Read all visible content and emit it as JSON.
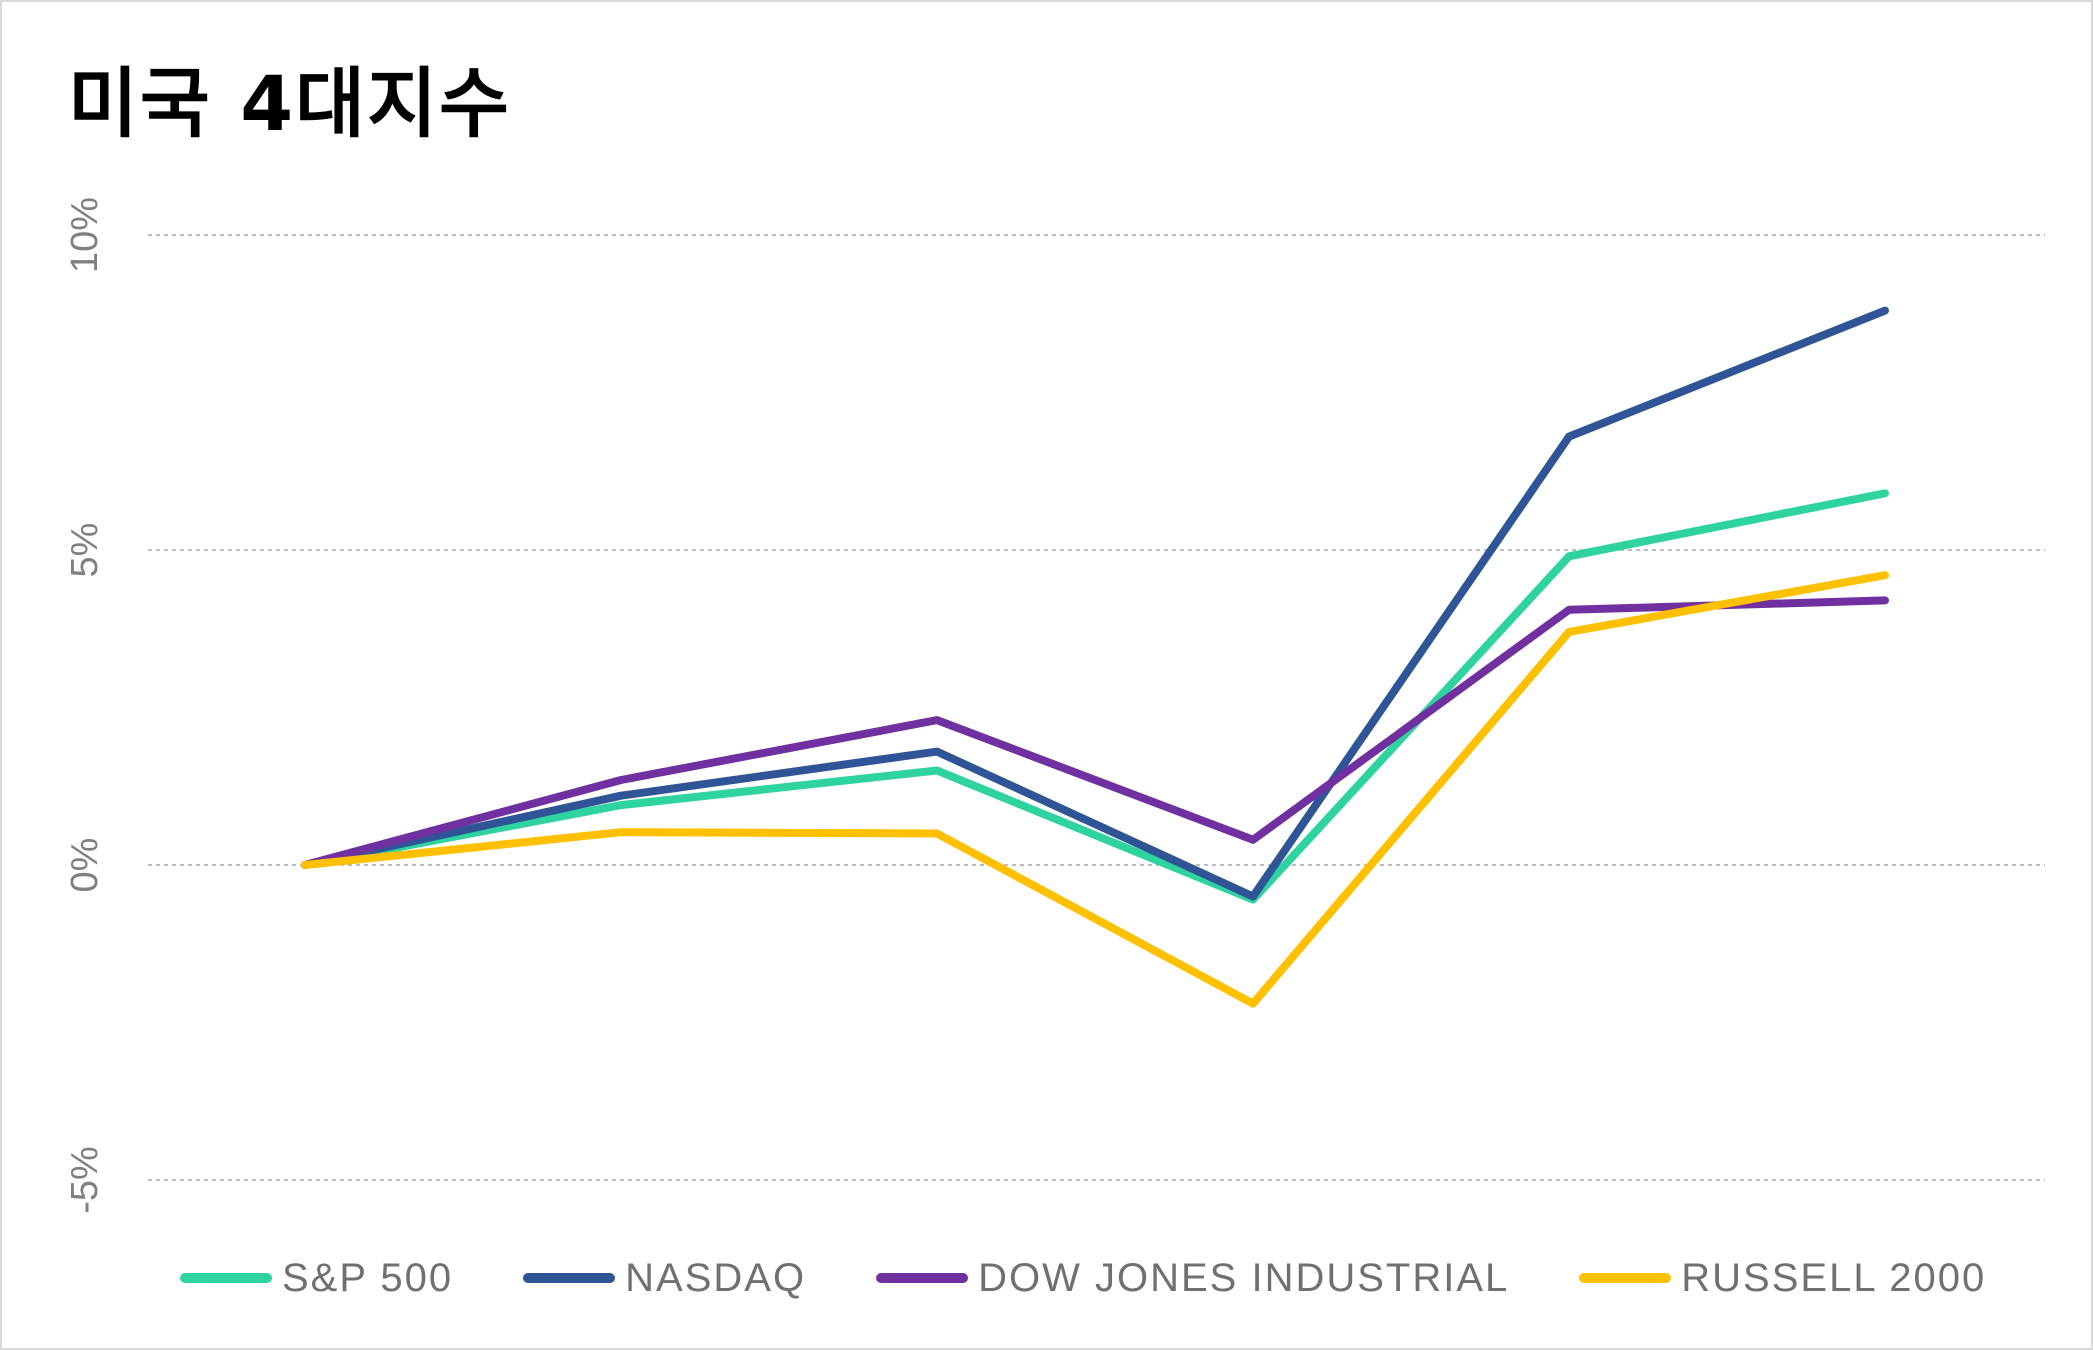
{
  "title": "미국 4대지수",
  "chart_data": {
    "type": "line",
    "title": "미국 4대지수",
    "x": [
      1,
      2,
      3,
      4,
      5,
      6
    ],
    "y_ticks": [
      "-5%",
      "0%",
      "5%",
      "10%"
    ],
    "y_tick_values": [
      -5,
      0,
      5,
      10
    ],
    "ylim": [
      -5,
      10
    ],
    "grid": true,
    "legend_position": "bottom",
    "series": [
      {
        "name": "S&P 500",
        "color": "#2ed3a0",
        "values": [
          0,
          0.95,
          1.5,
          -0.55,
          4.9,
          5.9
        ]
      },
      {
        "name": "NASDAQ",
        "color": "#2f5597",
        "values": [
          0,
          1.1,
          1.8,
          -0.5,
          6.8,
          8.8
        ]
      },
      {
        "name": "DOW JONES INDUSTRIAL",
        "color": "#7030a0",
        "values": [
          0,
          1.35,
          2.3,
          0.4,
          4.05,
          4.2
        ]
      },
      {
        "name": "RUSSELL 2000",
        "color": "#ffc000",
        "values": [
          0,
          0.52,
          0.5,
          -2.2,
          3.7,
          4.6
        ]
      }
    ]
  }
}
